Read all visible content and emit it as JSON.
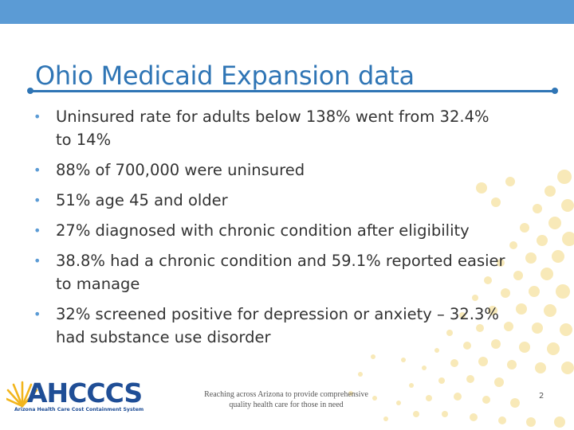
{
  "slide": {
    "title": "Ohio Medicaid Expansion data",
    "bullets": [
      {
        "line1": "Uninsured rate for adults below 138% went from 32.4%",
        "line2": "to 14%"
      },
      {
        "line1": "88% of 700,000 were uninsured",
        "line2": ""
      },
      {
        "line1": "51% age 45 and older",
        "line2": ""
      },
      {
        "line1": "27% diagnosed with chronic condition after eligibility",
        "line2": ""
      },
      {
        "line1": "38.8% had a chronic condition and 59.1% reported easier",
        "line2": "to manage"
      },
      {
        "line1": "32% screened positive for depression or anxiety – 32.3%",
        "line2": "had substance use disorder"
      }
    ],
    "bullet_glyph": "•"
  },
  "logo": {
    "name": "AHCCCS",
    "subtitle": "Arizona Health Care Cost Containment System"
  },
  "footer": {
    "line1": "Reaching across Arizona to provide comprehensive",
    "line2": "quality health care for those in need",
    "page_number": "2"
  },
  "colors": {
    "accent": "#5b9bd5",
    "title": "#2f75b5",
    "text": "#333333",
    "dots": "#f7e7b0",
    "logo_blue": "#1f4e96",
    "logo_sun": "#f2b51c"
  }
}
